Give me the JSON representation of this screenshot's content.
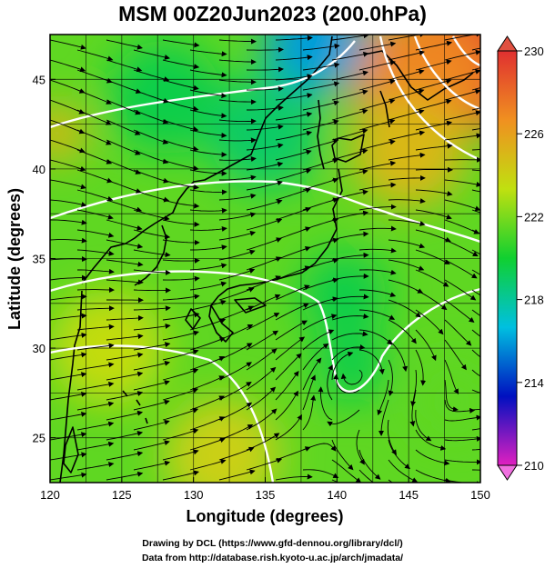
{
  "title": "MSM 00Z20Jun2023 (200.0hPa)",
  "footer": {
    "line1": "Drawing by DCL (https://www.gfd-dennou.org/library/dcl/)",
    "line2": "Data from http://database.rish.kyoto-u.ac.jp/arch/jmadata/"
  },
  "chart_data": {
    "type": "heatmap",
    "xlabel": "Longitude (degrees)",
    "ylabel": "Latitude  (degrees)",
    "xlim": [
      120,
      150
    ],
    "ylim": [
      22.5,
      47.5
    ],
    "x_ticks": [
      120,
      125,
      130,
      135,
      140,
      145,
      150
    ],
    "y_ticks": [
      25,
      30,
      35,
      40,
      45
    ],
    "colorbar": {
      "min": 210,
      "max": 230,
      "ticks": [
        210,
        214,
        218,
        222,
        226,
        230
      ],
      "colors": [
        "#e020c0",
        "#0010c0",
        "#00c0e0",
        "#10d030",
        "#c0e010",
        "#f09020",
        "#e03030"
      ]
    },
    "color_regions": [
      {
        "lon": 151,
        "lat": 47,
        "value": 229.5,
        "r": 6
      },
      {
        "lon": 146,
        "lat": 45,
        "value": 227,
        "r": 5
      },
      {
        "lon": 145,
        "lat": 41,
        "value": 225,
        "r": 4
      },
      {
        "lon": 138.5,
        "lat": 47,
        "value": 216,
        "r": 3.5
      },
      {
        "lon": 135,
        "lat": 42,
        "value": 219,
        "r": 4
      },
      {
        "lon": 128,
        "lat": 44,
        "value": 219.5,
        "r": 4
      },
      {
        "lon": 140.5,
        "lat": 33,
        "value": 219.5,
        "r": 3
      },
      {
        "lon": 141,
        "lat": 29,
        "value": 219.5,
        "r": 2.5
      },
      {
        "lon": 124,
        "lat": 30,
        "value": 223.5,
        "r": 4
      },
      {
        "lon": 132,
        "lat": 24,
        "value": 224,
        "r": 4
      },
      {
        "lon": 120.5,
        "lat": 42,
        "value": 225,
        "r": 2
      },
      {
        "lon": 148,
        "lat": 27,
        "value": 221.5,
        "r": 3
      }
    ]
  }
}
